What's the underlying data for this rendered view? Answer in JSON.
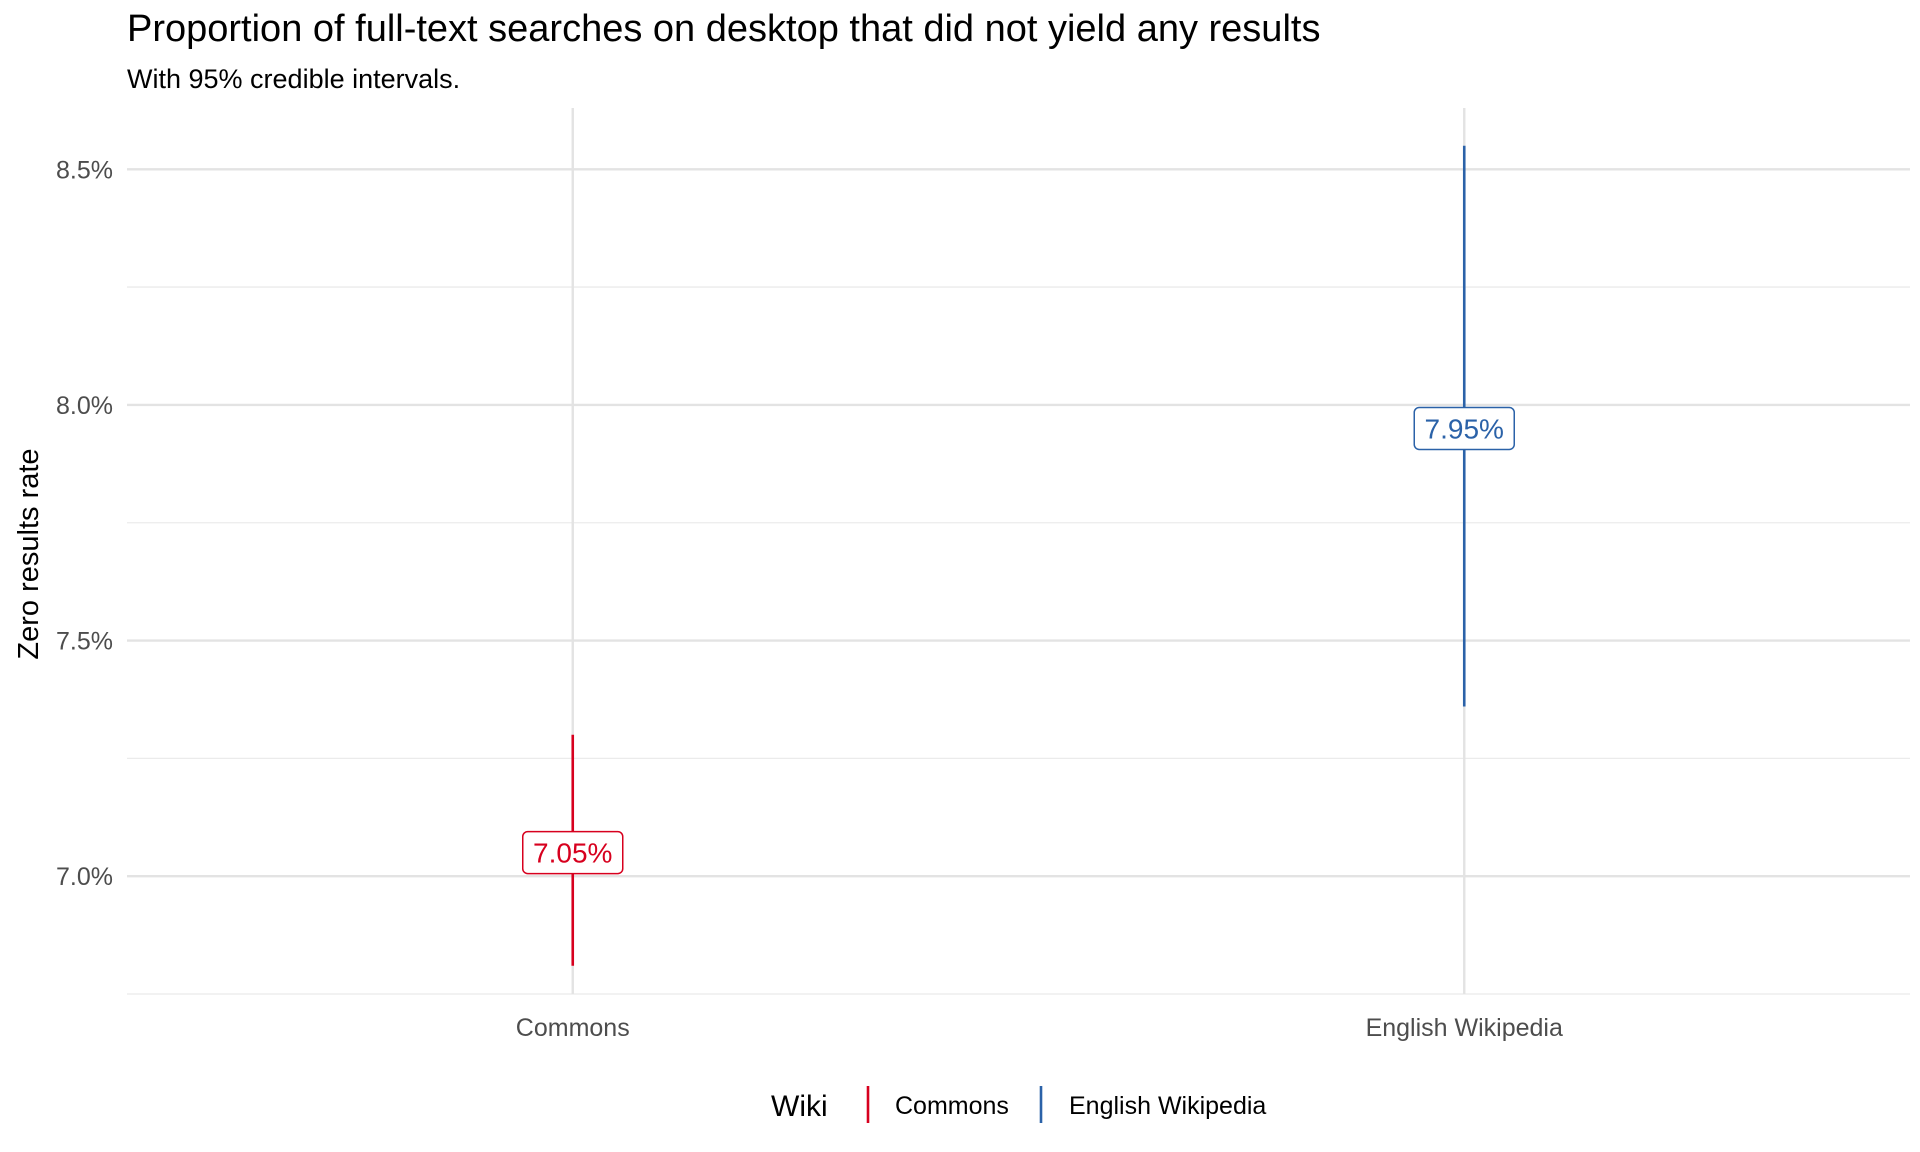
{
  "chart_data": {
    "type": "errorbar",
    "title": "Proportion of full-text searches on desktop that did not yield any results",
    "subtitle": "With 95% credible intervals.",
    "xlabel": "",
    "ylabel": "Zero results rate",
    "ylim": [
      6.75,
      8.63
    ],
    "y_ticks": [
      7.0,
      7.5,
      8.0,
      8.5
    ],
    "y_tick_labels": [
      "7.0%",
      "7.5%",
      "8.0%",
      "8.5%"
    ],
    "y_minor_ticks": [
      6.75,
      7.25,
      7.75,
      8.25
    ],
    "categories": [
      "Commons",
      "English Wikipedia"
    ],
    "series": [
      {
        "name": "Commons",
        "point": 7.05,
        "lower": 6.81,
        "upper": 7.3,
        "label": "7.05%",
        "color": "#D7001E"
      },
      {
        "name": "English Wikipedia",
        "point": 7.95,
        "lower": 7.36,
        "upper": 8.55,
        "label": "7.95%",
        "color": "#2B62A8"
      }
    ],
    "grid": true,
    "legend": {
      "title": "Wiki",
      "position": "bottom",
      "entries": [
        "Commons",
        "English Wikipedia"
      ]
    }
  }
}
